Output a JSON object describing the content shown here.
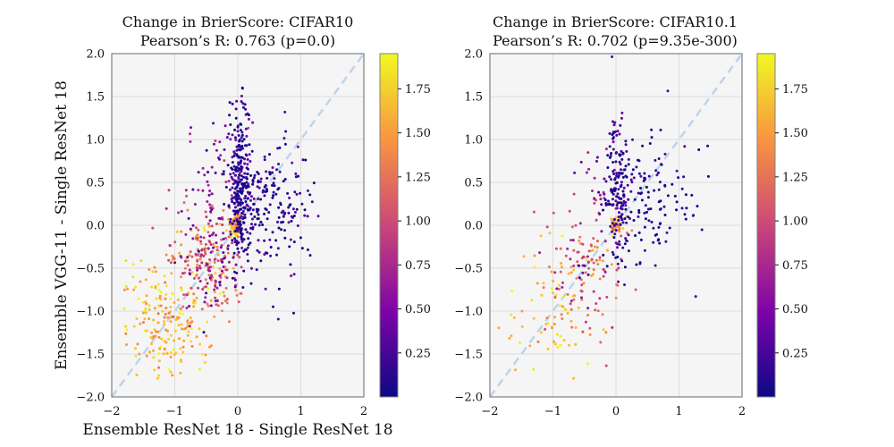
{
  "figure": {
    "panels": [
      {
        "title_line1": "Change in BrierScore:  CIFAR10",
        "title_line2": "Pearson’s R: 0.763 (p=0.0)",
        "xlabel": "Ensemble ResNet 18 - Single ResNet 18",
        "ylabel": "Ensemble VGG-11 - Single ResNet 18"
      },
      {
        "title_line1": "Change in BrierScore:  CIFAR10.1",
        "title_line2": "Pearson’s R: 0.702 (p=9.35e-300)",
        "xlabel": "",
        "ylabel": ""
      }
    ]
  },
  "colors": {
    "axes_background": "#f5f5f5",
    "grid": "#dcdcdc",
    "spine": "#808080",
    "diagonal": "#a9c8e8"
  },
  "chart_data": [
    {
      "type": "scatter",
      "title": "Change in BrierScore:  CIFAR10 / Pearson’s R: 0.763 (p=0.0)",
      "xlabel": "Ensemble ResNet 18 - Single ResNet 18",
      "ylabel": "Ensemble VGG-11 - Single ResNet 18",
      "xlim": [
        -2,
        2
      ],
      "ylim": [
        -2,
        2
      ],
      "xticks": [
        -2,
        -1,
        0,
        1,
        2
      ],
      "yticks": [
        -2.0,
        -1.5,
        -1.0,
        -0.5,
        0.0,
        0.5,
        1.0,
        1.5,
        2.0
      ],
      "grid": true,
      "reference_line": "y = x (dashed)",
      "colormap": "plasma",
      "colorbar_range": [
        0,
        1.95
      ],
      "colorbar_ticks": [
        0.25,
        0.5,
        0.75,
        1.0,
        1.25,
        1.5,
        1.75
      ],
      "pearson_r": 0.763,
      "p_value": "0.0",
      "clusters": [
        {
          "region": "tight blob at origin",
          "x_mean": -0.02,
          "x_sd": 0.04,
          "y_mean": 0.0,
          "y_sd": 0.05,
          "color_value_mean": 1.7,
          "color_value_sd": 0.2,
          "count": 120
        },
        {
          "region": "vertical band near x=0",
          "x_mean": 0.04,
          "x_sd": 0.09,
          "y_mean": 0.45,
          "y_sd": 0.45,
          "color_value_mean": 0.15,
          "color_value_sd": 0.18,
          "count": 280
        },
        {
          "region": "spread right of origin",
          "x_mean": 0.55,
          "x_sd": 0.35,
          "y_mean": 0.25,
          "y_sd": 0.4,
          "color_value_mean": 0.12,
          "color_value_sd": 0.15,
          "count": 200
        },
        {
          "region": "diagonal mid band",
          "x_mean": -0.45,
          "x_sd": 0.3,
          "y_mean": -0.4,
          "y_sd": 0.35,
          "color_value_mean": 1.0,
          "color_value_sd": 0.35,
          "count": 240
        },
        {
          "region": "lower-left tail",
          "x_mean": -1.1,
          "x_sd": 0.35,
          "y_mean": -1.1,
          "y_sd": 0.4,
          "color_value_mean": 1.65,
          "color_value_sd": 0.2,
          "count": 200
        },
        {
          "region": "upper-left purple fan",
          "x_mean": -0.35,
          "x_sd": 0.3,
          "y_mean": 0.5,
          "y_sd": 0.35,
          "color_value_mean": 0.6,
          "color_value_sd": 0.2,
          "count": 60
        }
      ]
    },
    {
      "type": "scatter",
      "title": "Change in BrierScore:  CIFAR10.1 / Pearson’s R: 0.702 (p=9.35e-300)",
      "xlabel": "",
      "ylabel": "",
      "xlim": [
        -2,
        2
      ],
      "ylim": [
        -2,
        2
      ],
      "xticks": [
        -2,
        -1,
        0,
        1,
        2
      ],
      "yticks": [
        -2.0,
        -1.5,
        -1.0,
        -0.5,
        0.0,
        0.5,
        1.0,
        1.5,
        2.0
      ],
      "grid": true,
      "reference_line": "y = x (dashed)",
      "colormap": "plasma",
      "colorbar_range": [
        0,
        1.95
      ],
      "colorbar_ticks": [
        0.25,
        0.5,
        0.75,
        1.0,
        1.25,
        1.5,
        1.75
      ],
      "pearson_r": 0.702,
      "p_value": "9.35e-300",
      "clusters": [
        {
          "region": "tight blob at origin",
          "x_mean": 0.0,
          "x_sd": 0.04,
          "y_mean": 0.0,
          "y_sd": 0.05,
          "color_value_mean": 1.6,
          "color_value_sd": 0.25,
          "count": 50
        },
        {
          "region": "vertical band near x=0",
          "x_mean": 0.05,
          "x_sd": 0.09,
          "y_mean": 0.45,
          "y_sd": 0.45,
          "color_value_mean": 0.15,
          "color_value_sd": 0.15,
          "count": 150
        },
        {
          "region": "spread right of origin",
          "x_mean": 0.5,
          "x_sd": 0.35,
          "y_mean": 0.3,
          "y_sd": 0.4,
          "color_value_mean": 0.1,
          "color_value_sd": 0.12,
          "count": 130
        },
        {
          "region": "diagonal mid band",
          "x_mean": -0.45,
          "x_sd": 0.3,
          "y_mean": -0.45,
          "y_sd": 0.35,
          "color_value_mean": 1.05,
          "color_value_sd": 0.4,
          "count": 130
        },
        {
          "region": "lower-left tail",
          "x_mean": -1.05,
          "x_sd": 0.35,
          "y_mean": -1.1,
          "y_sd": 0.35,
          "color_value_mean": 1.65,
          "color_value_sd": 0.2,
          "count": 70
        },
        {
          "region": "upper-left purple fan",
          "x_mean": -0.3,
          "x_sd": 0.25,
          "y_mean": 0.4,
          "y_sd": 0.3,
          "color_value_mean": 0.6,
          "color_value_sd": 0.2,
          "count": 25
        }
      ]
    }
  ]
}
